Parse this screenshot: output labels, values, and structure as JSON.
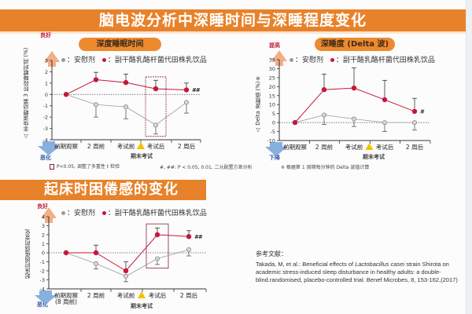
{
  "page": {
    "title": "脑电波分析中深睡时间与深睡程度变化",
    "section2_title": "起床时困倦感的变化",
    "colors": {
      "banner": "#e8822a",
      "pill": "#ee8a2e",
      "placebo": "#9a9a9a",
      "treatment": "#c4183a",
      "better_arrow": "#f0a070",
      "worse_arrow": "#7aa6dd",
      "highlight_box": "#8a2040"
    },
    "legend": {
      "placebo_label": "：安慰剂",
      "treatment_label": "：副干酪乳酪杆菌代田株乳饮品"
    },
    "exam_label": "期末考试",
    "reference": {
      "heading": "参考文献：",
      "text_before_italic": "Takada, M, et al.: Beneficial effects of ",
      "italic": "Lactobacillus casei",
      "text_after_italic": " strain Shirota on academic stress-induced sleep disturbance in healthy adults: a double-blind.randomised, placebo-controlled trial. Benef Microbes, 8, 153-162,(2017)"
    }
  },
  "chart_data": [
    {
      "type": "line",
      "title": "深度睡眠时间",
      "ylabel": "△ 非快速眼动第 3 阶段睡眠时间 (%)",
      "better_label": "良好",
      "worse_label": "恶化",
      "categories": [
        "前期观察",
        "2 周前",
        "考试前",
        "考试后",
        "2 周后"
      ],
      "ylim": [
        -4,
        3
      ],
      "yticks": [
        -4,
        -3,
        -2,
        -1,
        0,
        1,
        2,
        3
      ],
      "series": [
        {
          "name": "安慰剂",
          "values": [
            0,
            -0.9,
            -1.1,
            -2.7,
            -0.7
          ],
          "err_low": [
            0,
            -2.0,
            -2.15,
            -3.5,
            -1.65
          ]
        },
        {
          "name": "副干酪乳酪杆菌代田株乳饮品",
          "values": [
            0,
            1.3,
            1.05,
            0.5,
            0.4
          ],
          "err_high": [
            0,
            1.95,
            1.8,
            1.25,
            1.0
          ]
        }
      ],
      "significance_box_index": 3,
      "annotations": [
        "##"
      ],
      "footnote_left": "P<0.05, 调整了多重性 t 检验",
      "footnote_right": "#, ##: P < 0.05, 0.01, 二元配置方差分析"
    },
    {
      "type": "line",
      "title": "深睡度 (Delta 波)",
      "ylabel": "△ Delta 波数值 (%)※",
      "better_label": "提高",
      "worse_label": "下降",
      "categories": [
        "前期观察",
        "2 周前",
        "考试前",
        "考试后",
        "2 周后"
      ],
      "ylim": [
        -10,
        35
      ],
      "yticks": [
        -10,
        -5,
        0,
        5,
        10,
        15,
        20,
        25,
        30,
        35
      ],
      "series": [
        {
          "name": "安慰剂",
          "values": [
            0,
            4.2,
            2.0,
            0,
            0
          ],
          "err_low": [
            0,
            -1.0,
            -2.2,
            -5.0,
            -4.2
          ]
        },
        {
          "name": "副干酪乳酪杆菌代田株乳饮品",
          "values": [
            0,
            18.3,
            19.2,
            12.7,
            6.2
          ],
          "err_high": [
            0,
            27.0,
            30.5,
            23.5,
            13.5
          ]
        }
      ],
      "annotations": [
        "#"
      ],
      "footnote": "※ 根据第 1 周期每分钟的 Delta 波值计算"
    },
    {
      "type": "line",
      "title": "起床时困倦感的变化",
      "ylabel": "起床时困倦感的变化",
      "better_label": "良好",
      "worse_label": "恶化",
      "categories": [
        "前期观察\n(8 周前)",
        "2 周前",
        "考试前",
        "考试后",
        "2 周后"
      ],
      "ylim": [
        -4,
        4
      ],
      "yticks": [
        -4,
        -3,
        -2,
        -1,
        0,
        1,
        2,
        3,
        4
      ],
      "series": [
        {
          "name": "安慰剂",
          "values": [
            0,
            -1.2,
            -2.6,
            -0.65,
            0.35
          ],
          "err_low": [
            0,
            -1.8,
            -3.2,
            -1.3,
            -0.35
          ]
        },
        {
          "name": "副干酪乳酪杆菌代田株乳饮品",
          "values": [
            0,
            0,
            -2.0,
            2.0,
            1.8
          ],
          "err_high": [
            0,
            0.85,
            -1.0,
            2.75,
            2.45
          ]
        }
      ],
      "significance_box_index": 3,
      "annotations": [
        "##"
      ]
    }
  ]
}
